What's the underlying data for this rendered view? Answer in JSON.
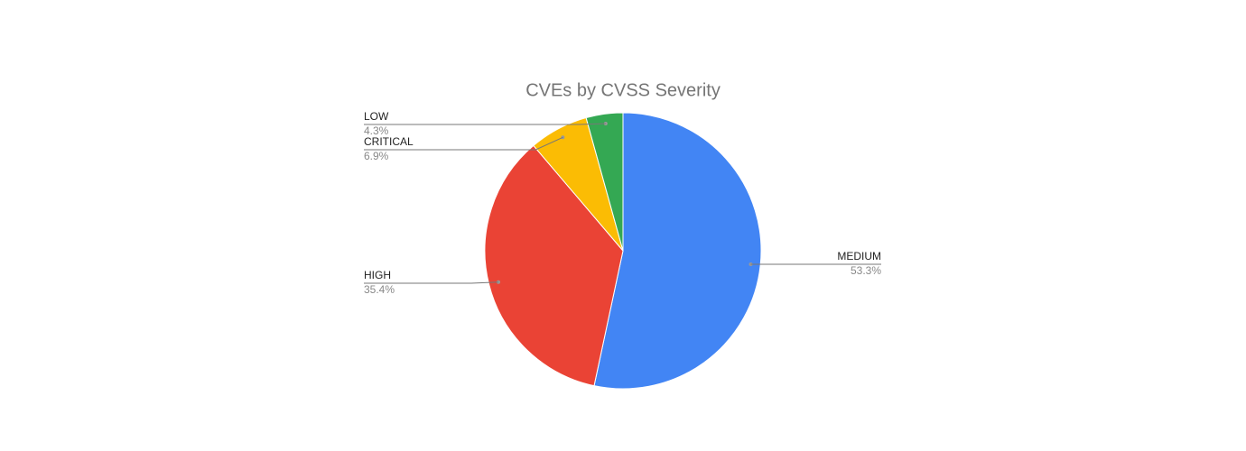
{
  "chart_data": {
    "type": "pie",
    "title": "CVEs by CVSS Severity",
    "categories": [
      "MEDIUM",
      "HIGH",
      "CRITICAL",
      "LOW"
    ],
    "values": [
      53.3,
      35.4,
      6.9,
      4.3
    ],
    "value_labels": [
      "53.3%",
      "35.4%",
      "6.9%",
      "4.3%"
    ],
    "colors": [
      "#4285f4",
      "#ea4335",
      "#fbbc04",
      "#34a853"
    ]
  }
}
